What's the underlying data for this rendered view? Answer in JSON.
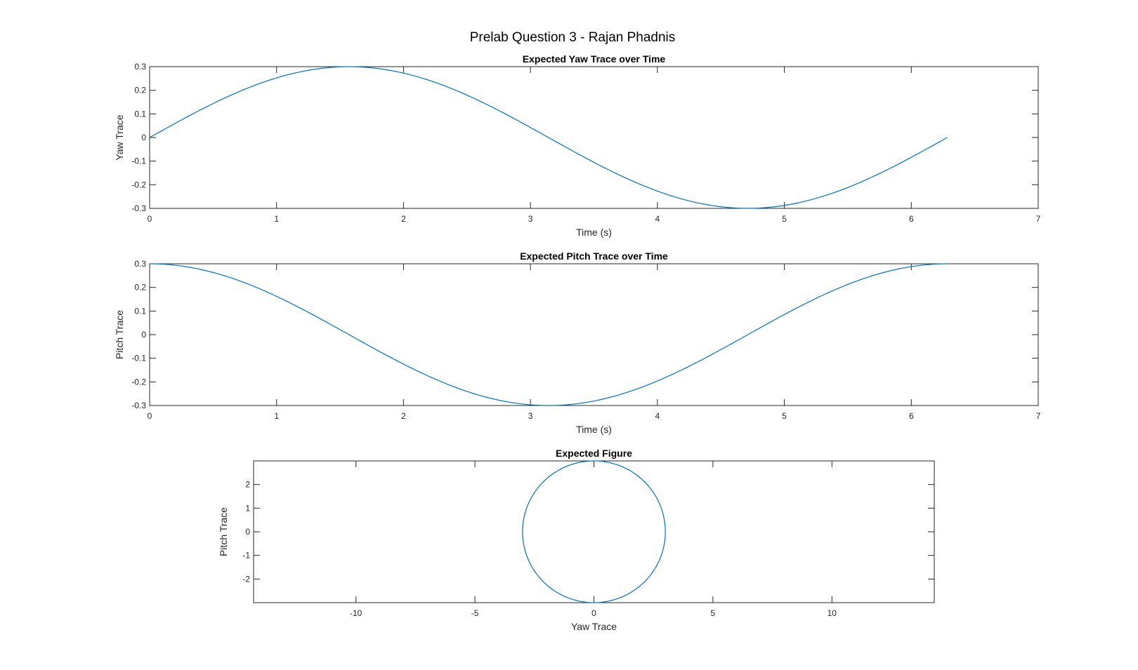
{
  "figure": {
    "suptitle": "Prelab Question 3 - Rajan Phadnis"
  },
  "chart_data": [
    {
      "type": "line",
      "title": "Expected Yaw Trace over Time",
      "xlabel": "Time (s)",
      "ylabel": "Yaw Trace",
      "xlim": [
        0,
        7
      ],
      "ylim": [
        -0.3,
        0.3
      ],
      "xticks": [
        0,
        1,
        2,
        3,
        4,
        5,
        6,
        7
      ],
      "xtick_labels": [
        "0",
        "1",
        "2",
        "3",
        "4",
        "5",
        "6",
        "7"
      ],
      "yticks": [
        -0.3,
        -0.2,
        -0.1,
        0,
        0.1,
        0.2,
        0.3
      ],
      "ytick_labels": [
        "-0.3",
        "-0.2",
        "-0.1",
        "0",
        "0.1",
        "0.2",
        "0.3"
      ],
      "grid": false,
      "color": "#0072bd",
      "series": [
        {
          "x": [
            0,
            0.25,
            0.5,
            0.75,
            1.0,
            1.25,
            1.5,
            1.75,
            2.0,
            2.25,
            2.5,
            2.75,
            3.0,
            3.25,
            3.5,
            3.75,
            4.0,
            4.25,
            4.5,
            4.75,
            5.0,
            5.25,
            5.5,
            5.75,
            6.0,
            6.283
          ],
          "values": [
            0,
            0.0742,
            0.1438,
            0.2045,
            0.2524,
            0.2847,
            0.2992,
            0.2951,
            0.2728,
            0.2335,
            0.1795,
            0.1145,
            0.0423,
            -0.0325,
            -0.1052,
            -0.1714,
            -0.227,
            -0.2685,
            -0.2932,
            -0.2998,
            -0.2877,
            -0.2576,
            -0.2113,
            -0.1518,
            -0.0838,
            0
          ]
        }
      ]
    },
    {
      "type": "line",
      "title": "Expected Pitch Trace over Time",
      "xlabel": "Time (s)",
      "ylabel": "Pitch Trace",
      "xlim": [
        0,
        7
      ],
      "ylim": [
        -0.3,
        0.3
      ],
      "xticks": [
        0,
        1,
        2,
        3,
        4,
        5,
        6,
        7
      ],
      "xtick_labels": [
        "0",
        "1",
        "2",
        "3",
        "4",
        "5",
        "6",
        "7"
      ],
      "yticks": [
        -0.3,
        -0.2,
        -0.1,
        0,
        0.1,
        0.2,
        0.3
      ],
      "ytick_labels": [
        "-0.3",
        "-0.2",
        "-0.1",
        "0",
        "0.1",
        "0.2",
        "0.3"
      ],
      "grid": false,
      "color": "#0072bd",
      "series": [
        {
          "x": [
            0,
            0.25,
            0.5,
            0.75,
            1.0,
            1.25,
            1.5,
            1.75,
            2.0,
            2.25,
            2.5,
            2.75,
            3.0,
            3.25,
            3.5,
            3.75,
            4.0,
            4.25,
            4.5,
            4.75,
            5.0,
            5.25,
            5.5,
            5.75,
            6.0,
            6.283
          ],
          "values": [
            0.3,
            0.2906,
            0.2633,
            0.2195,
            0.1621,
            0.0946,
            0.0212,
            -0.0534,
            -0.1248,
            -0.1884,
            -0.2403,
            -0.2772,
            -0.297,
            -0.2982,
            -0.2808,
            -0.2461,
            -0.1961,
            -0.1342,
            -0.0634,
            0.0113,
            0.0851,
            0.1536,
            0.2126,
            0.2586,
            0.288,
            0.3
          ]
        }
      ]
    },
    {
      "type": "line",
      "title": "Expected Figure",
      "xlabel": "Yaw Trace",
      "ylabel": "Pitch Trace",
      "xlim": [
        -14.3,
        14.3
      ],
      "ylim": [
        -3,
        3
      ],
      "xticks": [
        -10,
        -5,
        0,
        5,
        10
      ],
      "xtick_labels": [
        "-10",
        "-5",
        "0",
        "5",
        "10"
      ],
      "yticks": [
        -2,
        -1,
        0,
        1,
        2
      ],
      "ytick_labels": [
        "-2",
        "-1",
        "0",
        "1",
        "2"
      ],
      "grid": false,
      "color": "#0072bd",
      "series": [
        {
          "x": [
            0,
            0.776,
            1.5,
            2.121,
            2.598,
            2.898,
            3,
            2.898,
            2.598,
            2.121,
            1.5,
            0.776,
            0,
            -0.776,
            -1.5,
            -2.121,
            -2.598,
            -2.898,
            -3,
            -2.898,
            -2.598,
            -2.121,
            -1.5,
            -0.776,
            0
          ],
          "values": [
            3,
            2.898,
            2.598,
            2.121,
            1.5,
            0.776,
            0,
            -0.776,
            -1.5,
            -2.121,
            -2.598,
            -2.898,
            -3,
            -2.898,
            -2.598,
            -2.121,
            -1.5,
            -0.776,
            0,
            0.776,
            1.5,
            2.121,
            2.598,
            2.898,
            3
          ]
        }
      ]
    }
  ]
}
